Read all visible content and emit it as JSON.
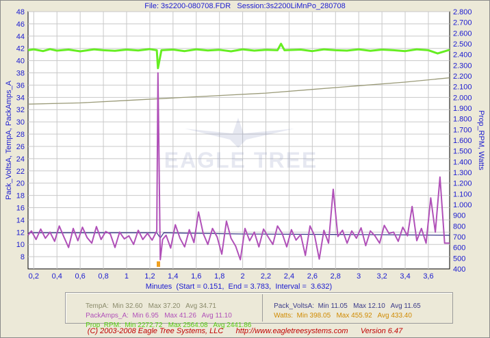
{
  "header": {
    "file_label": "File: 3s2200-080708.FDR",
    "session_label": "Session:3s2200LiMnPo_280708"
  },
  "watermark": {
    "text": "EAGLE TREE"
  },
  "chart_data": {
    "type": "line",
    "title": "File: 3s2200-080708.FDR   Session:3s2200LiMnPo_280708",
    "xlabel": "Minutes  (Start = 0.151,  End = 3.783,  Interval =  3.632)",
    "ylabel_left": "Pack_VoltsA, TempA, PackAmps_A",
    "ylabel_right": "Prop_RPM, Watts",
    "xlim": [
      0.151,
      3.783
    ],
    "ylim_left": [
      6,
      48
    ],
    "ylim_right": [
      400,
      2800
    ],
    "x_ticks": [
      "0,2",
      "0,4",
      "0,6",
      "0,8",
      "1",
      "1,2",
      "1,4",
      "1,6",
      "1,8",
      "2",
      "2,2",
      "2,4",
      "2,6",
      "2,8",
      "3",
      "3,2",
      "3,4",
      "3,6"
    ],
    "y_left_ticks": [
      "48",
      "46",
      "44",
      "42",
      "40",
      "38",
      "36",
      "34",
      "32",
      "30",
      "28",
      "26",
      "24",
      "22",
      "20",
      "18",
      "16",
      "14",
      "12",
      "10",
      "8"
    ],
    "y_right_ticks": [
      "2.800",
      "2.700",
      "2.600",
      "2.500",
      "2.400",
      "2.300",
      "2.200",
      "2.100",
      "2.000",
      "1.900",
      "1.800",
      "1.700",
      "1.600",
      "1.500",
      "1.400",
      "1.300",
      "1.200",
      "1.100",
      "1.000",
      "900",
      "800",
      "700",
      "600",
      "500",
      "400"
    ],
    "grid": true,
    "series": [
      {
        "name": "TempA",
        "axis": "left",
        "color": "#9a9a78",
        "x": [
          0.151,
          0.6,
          1.0,
          1.4,
          1.8,
          2.2,
          2.6,
          3.0,
          3.4,
          3.783
        ],
        "y": [
          32.9,
          33.1,
          33.5,
          33.9,
          34.3,
          34.7,
          35.3,
          35.9,
          36.5,
          37.2
        ]
      },
      {
        "name": "Pack_VoltsA",
        "axis": "left",
        "color": "#3a3a88",
        "x": [
          0.151,
          0.8,
          1.26,
          1.29,
          1.32,
          2.0,
          3.0,
          3.783
        ],
        "y": [
          11.9,
          11.9,
          11.9,
          11.05,
          11.9,
          11.7,
          11.6,
          11.5
        ]
      },
      {
        "name": "PackAmps_A",
        "axis": "left",
        "color": "#b050b8",
        "x": [
          0.151,
          0.18,
          0.22,
          0.26,
          0.3,
          0.34,
          0.38,
          0.42,
          0.46,
          0.5,
          0.54,
          0.58,
          0.62,
          0.66,
          0.7,
          0.74,
          0.78,
          0.82,
          0.86,
          0.9,
          0.94,
          0.98,
          1.02,
          1.06,
          1.1,
          1.14,
          1.18,
          1.22,
          1.26,
          1.27,
          1.29,
          1.31,
          1.34,
          1.38,
          1.42,
          1.46,
          1.5,
          1.54,
          1.58,
          1.62,
          1.66,
          1.7,
          1.74,
          1.78,
          1.82,
          1.86,
          1.9,
          1.94,
          1.98,
          2.02,
          2.06,
          2.1,
          2.14,
          2.18,
          2.22,
          2.26,
          2.3,
          2.34,
          2.38,
          2.42,
          2.46,
          2.5,
          2.54,
          2.58,
          2.62,
          2.66,
          2.7,
          2.74,
          2.78,
          2.82,
          2.86,
          2.9,
          2.94,
          2.98,
          3.02,
          3.06,
          3.1,
          3.14,
          3.18,
          3.22,
          3.26,
          3.3,
          3.34,
          3.38,
          3.42,
          3.46,
          3.5,
          3.54,
          3.58,
          3.62,
          3.66,
          3.7,
          3.74,
          3.783
        ],
        "y": [
          11.5,
          12.2,
          10.8,
          12.5,
          11.0,
          12.0,
          10.5,
          13.0,
          11.2,
          9.5,
          12.6,
          10.6,
          12.8,
          11.1,
          10.2,
          12.9,
          10.8,
          12.1,
          11.7,
          9.5,
          12.0,
          10.9,
          11.4,
          10.0,
          12.3,
          10.8,
          11.8,
          10.7,
          12.2,
          38.0,
          7.5,
          10.8,
          11.5,
          9.4,
          13.2,
          11.0,
          9.6,
          12.4,
          10.3,
          15.3,
          11.8,
          10.0,
          12.6,
          11.2,
          8.4,
          13.8,
          11.0,
          9.7,
          7.5,
          12.6,
          10.6,
          12.0,
          9.6,
          12.5,
          11.2,
          10.0,
          13.0,
          11.8,
          9.6,
          12.4,
          10.7,
          11.6,
          8.2,
          13.0,
          11.4,
          7.6,
          12.3,
          10.2,
          19.0,
          11.3,
          12.3,
          10.2,
          12.2,
          11.0,
          12.7,
          9.8,
          12.2,
          11.4,
          10.2,
          13.1,
          11.8,
          12.0,
          10.5,
          12.8,
          11.4,
          16.2,
          10.6,
          12.6,
          10.2,
          17.6,
          12.0,
          21.0,
          10.2,
          10.2
        ]
      },
      {
        "name": "Prop_RPM",
        "axis": "right",
        "color": "#66ee22",
        "x": [
          0.151,
          0.2,
          0.28,
          0.34,
          0.4,
          0.5,
          0.6,
          0.72,
          0.8,
          0.9,
          1.0,
          1.1,
          1.2,
          1.26,
          1.27,
          1.3,
          1.4,
          1.5,
          1.6,
          1.7,
          1.8,
          1.9,
          2.0,
          2.1,
          2.2,
          2.3,
          2.33,
          2.36,
          2.5,
          2.6,
          2.7,
          2.8,
          2.9,
          3.0,
          3.1,
          3.2,
          3.3,
          3.4,
          3.5,
          3.6,
          3.68,
          3.783
        ],
        "y": [
          2440,
          2448,
          2432,
          2450,
          2436,
          2446,
          2430,
          2448,
          2440,
          2434,
          2446,
          2438,
          2450,
          2440,
          2272.72,
          2440,
          2446,
          2432,
          2448,
          2438,
          2444,
          2430,
          2448,
          2436,
          2444,
          2440,
          2500,
          2440,
          2446,
          2432,
          2448,
          2440,
          2436,
          2448,
          2434,
          2446,
          2440,
          2432,
          2448,
          2440,
          2410,
          2444
        ]
      }
    ]
  },
  "legend": {
    "temp_name": "TempA:",
    "temp_stats": "Min 32.60   Max 37.20   Avg 34.71",
    "amps_name": "PackAmps_A:",
    "amps_stats": "Min 6.95   Max 41.26   Avg 11.10",
    "rpm_name": "Prop_RPM:",
    "rpm_stats": "Min 2272.72   Max 2564.08   Avg 2441.86",
    "volts_name": "Pack_VoltsA:",
    "volts_stats": "Min 11.05   Max 12.10   Avg 11.65",
    "watts_name": "Watts:",
    "watts_stats": "Min 398.05   Max 455.92   Avg 433.40"
  },
  "colors": {
    "temp": "#8a8a6a",
    "amps": "#b050b8",
    "rpm": "#55cc11",
    "volts": "#3a3a88",
    "watts": "#d08a00",
    "axis_text": "#1a1ad0",
    "footer": "#c00000",
    "grid": "#c8c8c8"
  },
  "footer": {
    "copyright": "(C) 2003-2008 Eagle Tree Systems, LLC",
    "url": "http://www.eagletreesystems.com",
    "version": "Version 6.47"
  }
}
